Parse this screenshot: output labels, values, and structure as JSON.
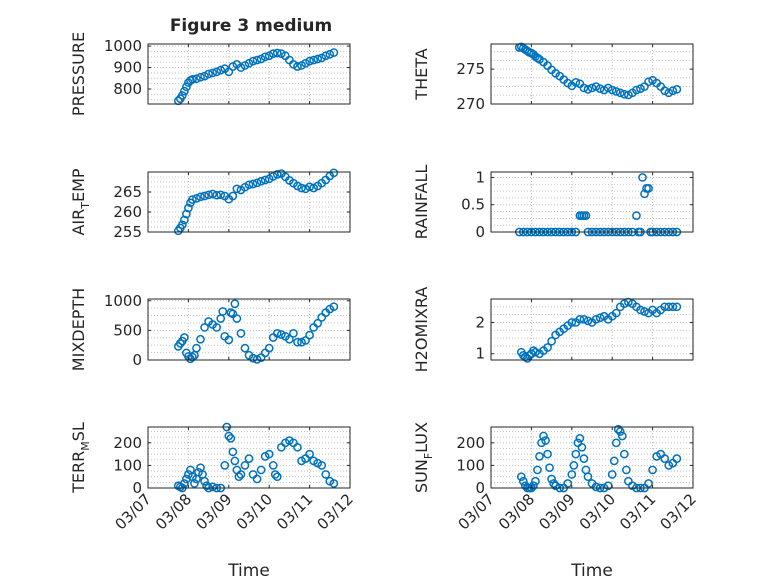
{
  "figure": {
    "title": "Figure 3 medium",
    "x_tick_labels": [
      "03/07",
      "03/08",
      "03/09",
      "03/10",
      "03/11",
      "03/12"
    ],
    "x_axis_label": "Time",
    "colors": {
      "marker": "#0072BD",
      "axis": "#262626",
      "grid": "#b5b5b5",
      "background": "#ffffff"
    }
  },
  "chart_data": [
    {
      "type": "scatter",
      "ylabel": "PRESSURE",
      "ylabel_sub": "",
      "title": "Figure 3 medium",
      "xlabel": "",
      "xlim": [
        7,
        12
      ],
      "ylim": [
        730,
        1010
      ],
      "yticks": [
        800,
        900,
        1000
      ],
      "ytick_labels": [
        "800",
        "900",
        "1000"
      ],
      "grid": true,
      "marker": "open-circle",
      "x": [
        7.75,
        7.8,
        7.85,
        7.9,
        7.95,
        8.0,
        8.05,
        8.1,
        8.2,
        8.3,
        8.4,
        8.5,
        8.6,
        8.7,
        8.8,
        8.9,
        9.0,
        9.1,
        9.2,
        9.3,
        9.4,
        9.5,
        9.6,
        9.7,
        9.8,
        9.9,
        10.0,
        10.1,
        10.2,
        10.3,
        10.4,
        10.5,
        10.6,
        10.7,
        10.8,
        10.9,
        11.0,
        11.1,
        11.2,
        11.3,
        11.4,
        11.5,
        11.6
      ],
      "y": [
        745,
        755,
        770,
        790,
        810,
        830,
        840,
        845,
        848,
        855,
        860,
        870,
        875,
        880,
        888,
        895,
        880,
        905,
        915,
        900,
        910,
        920,
        930,
        935,
        940,
        950,
        955,
        965,
        968,
        965,
        955,
        935,
        915,
        905,
        910,
        920,
        930,
        935,
        940,
        945,
        955,
        962,
        970
      ]
    },
    {
      "type": "scatter",
      "ylabel": "THETA",
      "ylabel_sub": "",
      "xlabel": "",
      "xlim": [
        7,
        12
      ],
      "ylim": [
        270,
        278.6
      ],
      "yticks": [
        270,
        275
      ],
      "ytick_labels": [
        "270",
        "275"
      ],
      "grid": true,
      "marker": "open-circle",
      "x": [
        7.7,
        7.75,
        7.8,
        7.85,
        7.9,
        7.95,
        8.0,
        8.05,
        8.1,
        8.15,
        8.2,
        8.3,
        8.4,
        8.5,
        8.6,
        8.7,
        8.8,
        8.9,
        9.0,
        9.1,
        9.2,
        9.3,
        9.4,
        9.5,
        9.6,
        9.7,
        9.8,
        9.9,
        10.0,
        10.1,
        10.2,
        10.3,
        10.4,
        10.5,
        10.6,
        10.7,
        10.8,
        10.9,
        11.0,
        11.1,
        11.2,
        11.3,
        11.4,
        11.5,
        11.6
      ],
      "y": [
        278.1,
        278.2,
        278.0,
        277.8,
        277.6,
        277.4,
        277.3,
        277.1,
        276.8,
        276.6,
        276.4,
        276.0,
        275.5,
        274.9,
        274.4,
        274.0,
        273.5,
        273.0,
        272.6,
        273.1,
        272.9,
        272.3,
        272.1,
        272.3,
        272.5,
        272.2,
        272.0,
        272.3,
        272.0,
        271.8,
        271.6,
        271.4,
        271.3,
        271.6,
        272.0,
        272.2,
        272.5,
        273.2,
        273.4,
        273.0,
        272.5,
        271.9,
        271.6,
        271.9,
        272.1
      ]
    },
    {
      "type": "scatter",
      "ylabel": "AIR",
      "ylabel_sub": "T",
      "ylabel_after": "EMP",
      "xlabel": "",
      "xlim": [
        7,
        12
      ],
      "ylim": [
        255,
        270
      ],
      "yticks": [
        255,
        260,
        265
      ],
      "ytick_labels": [
        "255",
        "260",
        "265"
      ],
      "grid": true,
      "marker": "open-circle",
      "x": [
        7.75,
        7.8,
        7.85,
        7.9,
        7.95,
        8.0,
        8.05,
        8.1,
        8.2,
        8.3,
        8.4,
        8.5,
        8.6,
        8.7,
        8.8,
        8.9,
        9.0,
        9.1,
        9.2,
        9.3,
        9.4,
        9.5,
        9.6,
        9.7,
        9.8,
        9.9,
        10.0,
        10.1,
        10.2,
        10.3,
        10.4,
        10.5,
        10.6,
        10.7,
        10.8,
        10.9,
        11.0,
        11.1,
        11.2,
        11.3,
        11.4,
        11.5,
        11.6
      ],
      "y": [
        255.3,
        256.0,
        256.8,
        258.0,
        259.5,
        261.0,
        262.3,
        263.1,
        263.4,
        263.8,
        264.0,
        264.3,
        264.5,
        264.2,
        264.3,
        264.0,
        263.2,
        264.0,
        265.8,
        265.5,
        266.2,
        266.8,
        267.0,
        267.3,
        267.7,
        268.0,
        268.3,
        268.9,
        269.4,
        269.6,
        268.8,
        267.9,
        267.2,
        266.5,
        266.0,
        265.8,
        266.3,
        266.0,
        266.5,
        267.2,
        268.0,
        269.0,
        269.8
      ]
    },
    {
      "type": "scatter",
      "ylabel": "RAINFALL",
      "ylabel_sub": "",
      "xlabel": "",
      "xlim": [
        7,
        12
      ],
      "ylim": [
        0,
        1.1
      ],
      "yticks": [
        0,
        0.5,
        1
      ],
      "ytick_labels": [
        "0",
        "0.5",
        "1"
      ],
      "grid": true,
      "marker": "open-circle",
      "x": [
        7.7,
        7.8,
        7.9,
        8.0,
        8.1,
        8.2,
        8.3,
        8.4,
        8.5,
        8.6,
        8.7,
        8.8,
        8.9,
        9.0,
        9.1,
        9.2,
        9.25,
        9.3,
        9.35,
        9.4,
        9.5,
        9.6,
        9.7,
        9.8,
        9.9,
        10.0,
        10.1,
        10.2,
        10.3,
        10.4,
        10.5,
        10.6,
        10.65,
        10.7,
        10.75,
        10.8,
        10.85,
        10.9,
        10.95,
        11.0,
        11.1,
        11.2,
        11.3,
        11.4,
        11.5,
        11.6
      ],
      "y": [
        0,
        0,
        0,
        0,
        0,
        0,
        0,
        0,
        0,
        0,
        0,
        0,
        0,
        0,
        0,
        0.3,
        0.3,
        0.3,
        0.3,
        0,
        0,
        0,
        0,
        0,
        0,
        0,
        0,
        0,
        0,
        0,
        0,
        0.3,
        0,
        0,
        1.0,
        0.7,
        0.8,
        0.8,
        0,
        0,
        0,
        0,
        0,
        0,
        0,
        0
      ]
    },
    {
      "type": "scatter",
      "ylabel": "MIXDEPTH",
      "ylabel_sub": "",
      "xlabel": "",
      "xlim": [
        7,
        12
      ],
      "ylim": [
        0,
        1030
      ],
      "yticks": [
        0,
        500,
        1000
      ],
      "ytick_labels": [
        "0",
        "500",
        "1000"
      ],
      "grid": true,
      "marker": "open-circle",
      "x": [
        7.75,
        7.8,
        7.85,
        7.9,
        7.95,
        8.0,
        8.05,
        8.1,
        8.15,
        8.2,
        8.3,
        8.4,
        8.5,
        8.6,
        8.7,
        8.8,
        8.85,
        8.9,
        9.0,
        9.05,
        9.1,
        9.15,
        9.2,
        9.3,
        9.4,
        9.5,
        9.6,
        9.7,
        9.8,
        9.9,
        10.0,
        10.1,
        10.2,
        10.3,
        10.4,
        10.5,
        10.6,
        10.7,
        10.8,
        10.9,
        11.0,
        11.1,
        11.2,
        11.3,
        11.4,
        11.5,
        11.6
      ],
      "y": [
        230,
        280,
        320,
        380,
        120,
        60,
        20,
        50,
        80,
        200,
        350,
        550,
        650,
        600,
        550,
        700,
        820,
        400,
        340,
        800,
        780,
        950,
        700,
        450,
        200,
        80,
        30,
        10,
        40,
        120,
        200,
        380,
        450,
        430,
        400,
        350,
        450,
        300,
        300,
        330,
        420,
        550,
        620,
        720,
        800,
        860,
        900
      ]
    },
    {
      "type": "scatter",
      "ylabel": "H2OMIXRA",
      "ylabel_sub": "",
      "xlabel": "",
      "xlim": [
        7,
        12
      ],
      "ylim": [
        0.8,
        2.75
      ],
      "yticks": [
        1,
        2
      ],
      "ytick_labels": [
        "1",
        "2"
      ],
      "grid": true,
      "marker": "open-circle",
      "x": [
        7.75,
        7.8,
        7.85,
        7.9,
        7.95,
        8.0,
        8.05,
        8.1,
        8.2,
        8.3,
        8.4,
        8.5,
        8.6,
        8.7,
        8.8,
        8.9,
        9.0,
        9.1,
        9.2,
        9.3,
        9.4,
        9.5,
        9.6,
        9.7,
        9.8,
        9.9,
        10.0,
        10.1,
        10.2,
        10.3,
        10.4,
        10.5,
        10.6,
        10.7,
        10.8,
        10.9,
        11.0,
        11.1,
        11.2,
        11.3,
        11.4,
        11.5,
        11.6
      ],
      "y": [
        1.05,
        0.95,
        0.9,
        0.85,
        0.95,
        1.0,
        1.1,
        1.05,
        1.0,
        1.1,
        1.2,
        1.4,
        1.6,
        1.7,
        1.8,
        1.9,
        2.0,
        2.0,
        2.1,
        2.1,
        2.05,
        2.0,
        2.1,
        2.15,
        2.2,
        2.1,
        2.2,
        2.3,
        2.5,
        2.6,
        2.65,
        2.6,
        2.5,
        2.4,
        2.35,
        2.3,
        2.4,
        2.3,
        2.4,
        2.5,
        2.5,
        2.5,
        2.5
      ]
    },
    {
      "type": "scatter",
      "ylabel": "TERR",
      "ylabel_sub": "M",
      "ylabel_after": "SL",
      "xlabel": "Time",
      "xlim": [
        7,
        12
      ],
      "ylim": [
        0,
        270
      ],
      "yticks": [
        0,
        100,
        200
      ],
      "ytick_labels": [
        "0",
        "100",
        "200"
      ],
      "grid": true,
      "marker": "open-circle",
      "x": [
        7.75,
        7.8,
        7.85,
        7.9,
        7.95,
        8.0,
        8.05,
        8.1,
        8.15,
        8.2,
        8.25,
        8.3,
        8.35,
        8.4,
        8.45,
        8.5,
        8.6,
        8.7,
        8.8,
        8.9,
        8.95,
        9.0,
        9.05,
        9.1,
        9.15,
        9.2,
        9.25,
        9.3,
        9.4,
        9.5,
        9.6,
        9.7,
        9.8,
        9.9,
        10.0,
        10.1,
        10.15,
        10.2,
        10.3,
        10.4,
        10.5,
        10.6,
        10.7,
        10.8,
        10.9,
        11.0,
        11.1,
        11.2,
        11.3,
        11.4,
        11.5,
        11.6
      ],
      "y": [
        10,
        5,
        0,
        20,
        40,
        60,
        80,
        50,
        20,
        40,
        70,
        90,
        60,
        30,
        10,
        0,
        5,
        0,
        0,
        100,
        270,
        230,
        220,
        160,
        120,
        80,
        50,
        60,
        100,
        130,
        60,
        40,
        80,
        140,
        150,
        100,
        60,
        50,
        180,
        200,
        210,
        200,
        180,
        120,
        130,
        150,
        120,
        110,
        100,
        60,
        30,
        20
      ]
    },
    {
      "type": "scatter",
      "ylabel": "SUN",
      "ylabel_sub": "F",
      "ylabel_after": "LUX",
      "xlabel": "Time",
      "xlim": [
        7,
        12
      ],
      "ylim": [
        0,
        270
      ],
      "yticks": [
        0,
        100,
        200
      ],
      "ytick_labels": [
        "0",
        "100",
        "200"
      ],
      "grid": true,
      "marker": "open-circle",
      "x": [
        7.75,
        7.8,
        7.85,
        7.9,
        7.95,
        8.0,
        8.05,
        8.1,
        8.15,
        8.2,
        8.25,
        8.3,
        8.35,
        8.4,
        8.45,
        8.5,
        8.55,
        8.6,
        8.7,
        8.8,
        8.9,
        9.0,
        9.05,
        9.1,
        9.15,
        9.2,
        9.25,
        9.3,
        9.35,
        9.4,
        9.5,
        9.6,
        9.7,
        9.8,
        9.9,
        10.0,
        10.05,
        10.1,
        10.15,
        10.2,
        10.25,
        10.3,
        10.35,
        10.4,
        10.5,
        10.6,
        10.7,
        10.8,
        10.9,
        11.0,
        11.1,
        11.2,
        11.3,
        11.4,
        11.5,
        11.6
      ],
      "y": [
        50,
        30,
        10,
        0,
        0,
        0,
        10,
        30,
        80,
        140,
        200,
        230,
        210,
        150,
        90,
        40,
        20,
        10,
        0,
        0,
        20,
        60,
        100,
        150,
        200,
        220,
        180,
        130,
        80,
        50,
        20,
        5,
        0,
        0,
        10,
        60,
        120,
        200,
        260,
        250,
        230,
        150,
        80,
        30,
        10,
        0,
        0,
        0,
        20,
        80,
        140,
        150,
        130,
        100,
        110,
        130
      ]
    }
  ]
}
